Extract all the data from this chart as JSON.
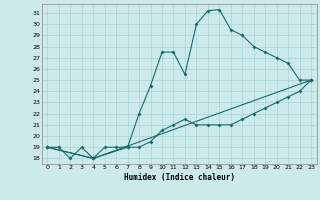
{
  "xlabel": "Humidex (Indice chaleur)",
  "bg_color": "#cce9ec",
  "grid_color": "#aad4d8",
  "line_color": "#1a6b6b",
  "xlim": [
    -0.5,
    23.5
  ],
  "ylim": [
    17.5,
    31.8
  ],
  "yticks": [
    18,
    19,
    20,
    21,
    22,
    23,
    24,
    25,
    26,
    27,
    28,
    29,
    30,
    31
  ],
  "xticks": [
    0,
    1,
    2,
    3,
    4,
    5,
    6,
    7,
    8,
    9,
    10,
    11,
    12,
    13,
    14,
    15,
    16,
    17,
    18,
    19,
    20,
    21,
    22,
    23
  ],
  "line1_x": [
    0,
    1,
    2,
    3,
    4,
    5,
    6,
    7,
    8,
    9,
    10,
    11,
    12,
    13,
    14,
    15,
    16,
    17,
    18,
    19,
    20,
    21,
    22,
    23
  ],
  "line1_y": [
    19,
    19,
    18,
    19,
    18,
    19,
    19,
    19,
    22,
    24.5,
    27.5,
    27.5,
    25.5,
    30,
    31.2,
    31.3,
    29.5,
    29,
    28,
    27.5,
    27,
    26.5,
    25,
    25
  ],
  "line2_x": [
    0,
    4,
    7,
    8,
    9,
    10,
    11,
    12,
    13,
    14,
    15,
    16,
    17,
    18,
    19,
    20,
    21,
    22,
    23
  ],
  "line2_y": [
    19,
    18,
    19,
    19,
    19.5,
    20.5,
    21,
    21.5,
    21,
    21,
    21,
    21,
    21.5,
    22,
    22.5,
    23,
    23.5,
    24,
    25
  ],
  "line3_x": [
    0,
    4,
    23
  ],
  "line3_y": [
    19,
    18,
    25
  ]
}
